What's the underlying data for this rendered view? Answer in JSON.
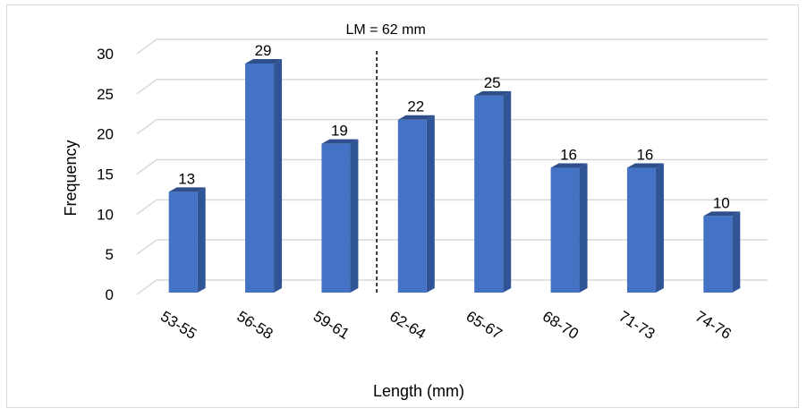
{
  "chart_data": {
    "type": "bar",
    "style": "3d-column",
    "categories": [
      "53-55",
      "56-58",
      "59-61",
      "62-64",
      "65-67",
      "68-70",
      "71-73",
      "74-76"
    ],
    "values": [
      13,
      29,
      19,
      22,
      25,
      16,
      16,
      10
    ],
    "xlabel": "Length (mm)",
    "ylabel": "Frequency",
    "ylim": [
      0,
      30
    ],
    "yticks": [
      0,
      5,
      10,
      15,
      20,
      25,
      30
    ],
    "grid": true,
    "legend": "none",
    "annotation": {
      "text": "LM = 62 mm",
      "x_value": 62,
      "style": "dashed vertical line"
    },
    "colors": {
      "bar_front": "#4472c4",
      "bar_side": "#2f5597",
      "bar_top": "#2e4f8a",
      "grid": "#d9d9d9",
      "frame": "#d9d9d9"
    }
  }
}
